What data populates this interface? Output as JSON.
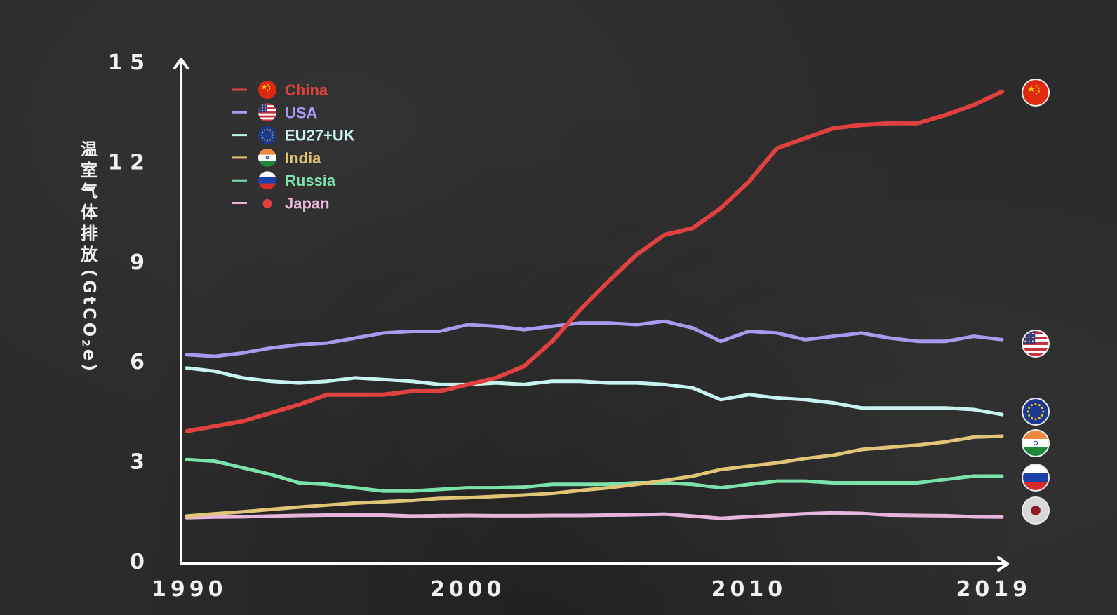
{
  "chart_data": {
    "type": "line",
    "ylabel_zh": "温室气体排放",
    "ylabel_unit_prefix": "(GtCO",
    "ylabel_unit_sub": "2",
    "ylabel_unit_suffix": "e)",
    "xlim": [
      1990,
      2019
    ],
    "ylim": [
      0,
      15
    ],
    "yticks": [
      0,
      3,
      6,
      9,
      12,
      15
    ],
    "ytick_labels": [
      "0",
      "3",
      "6",
      "9",
      "12",
      "15"
    ],
    "xticks": [
      1990,
      2000,
      2010,
      2019
    ],
    "xtick_labels": [
      "1990",
      "2000",
      "2010",
      "2019"
    ],
    "legend_position": "top-left",
    "x": [
      1990,
      1991,
      1992,
      1993,
      1994,
      1995,
      1996,
      1997,
      1998,
      1999,
      2000,
      2001,
      2002,
      2003,
      2004,
      2005,
      2006,
      2007,
      2008,
      2009,
      2010,
      2011,
      2012,
      2013,
      2014,
      2015,
      2016,
      2017,
      2018,
      2019
    ],
    "series": [
      {
        "name": "China",
        "color": "#e0413f",
        "icon": "china-flag-icon",
        "values": [
          3.9,
          4.05,
          4.2,
          4.45,
          4.7,
          5.0,
          5.0,
          5.0,
          5.1,
          5.1,
          5.3,
          5.5,
          5.85,
          6.6,
          7.55,
          8.4,
          9.2,
          9.8,
          10.0,
          10.6,
          11.4,
          12.4,
          12.7,
          13.0,
          13.1,
          13.15,
          13.15,
          13.4,
          13.7,
          14.1
        ]
      },
      {
        "name": "USA",
        "color": "#a99af0",
        "icon": "usa-flag-icon",
        "values": [
          6.2,
          6.15,
          6.25,
          6.4,
          6.5,
          6.55,
          6.7,
          6.85,
          6.9,
          6.9,
          7.1,
          7.05,
          6.95,
          7.05,
          7.15,
          7.15,
          7.1,
          7.2,
          7.0,
          6.6,
          6.9,
          6.85,
          6.65,
          6.75,
          6.85,
          6.7,
          6.6,
          6.6,
          6.75,
          6.65
        ]
      },
      {
        "name": "EU27+UK",
        "color": "#c8f4f0",
        "icon": "eu-flag-icon",
        "values": [
          5.8,
          5.7,
          5.5,
          5.4,
          5.35,
          5.4,
          5.5,
          5.45,
          5.4,
          5.3,
          5.3,
          5.35,
          5.3,
          5.4,
          5.4,
          5.35,
          5.35,
          5.3,
          5.2,
          4.85,
          5.0,
          4.9,
          4.85,
          4.75,
          4.6,
          4.6,
          4.6,
          4.6,
          4.55,
          4.4
        ]
      },
      {
        "name": "India",
        "color": "#e2c477",
        "icon": "india-flag-icon",
        "values": [
          1.35,
          1.42,
          1.48,
          1.55,
          1.62,
          1.68,
          1.74,
          1.78,
          1.82,
          1.88,
          1.9,
          1.94,
          1.98,
          2.03,
          2.12,
          2.2,
          2.3,
          2.42,
          2.55,
          2.75,
          2.85,
          2.95,
          3.08,
          3.18,
          3.35,
          3.42,
          3.48,
          3.58,
          3.72,
          3.75
        ]
      },
      {
        "name": "Russia",
        "color": "#7be3a9",
        "icon": "russia-flag-icon",
        "values": [
          3.05,
          3.0,
          2.8,
          2.6,
          2.35,
          2.3,
          2.2,
          2.1,
          2.1,
          2.15,
          2.2,
          2.2,
          2.22,
          2.3,
          2.3,
          2.3,
          2.35,
          2.35,
          2.3,
          2.2,
          2.3,
          2.4,
          2.4,
          2.35,
          2.35,
          2.35,
          2.35,
          2.45,
          2.55,
          2.55
        ]
      },
      {
        "name": "Japan",
        "color": "#e6b4dc",
        "icon": "japan-flag-icon",
        "values": [
          1.3,
          1.32,
          1.33,
          1.35,
          1.37,
          1.38,
          1.38,
          1.38,
          1.35,
          1.36,
          1.37,
          1.36,
          1.36,
          1.37,
          1.37,
          1.38,
          1.39,
          1.41,
          1.35,
          1.28,
          1.33,
          1.37,
          1.42,
          1.45,
          1.43,
          1.38,
          1.37,
          1.36,
          1.33,
          1.32
        ]
      }
    ]
  }
}
